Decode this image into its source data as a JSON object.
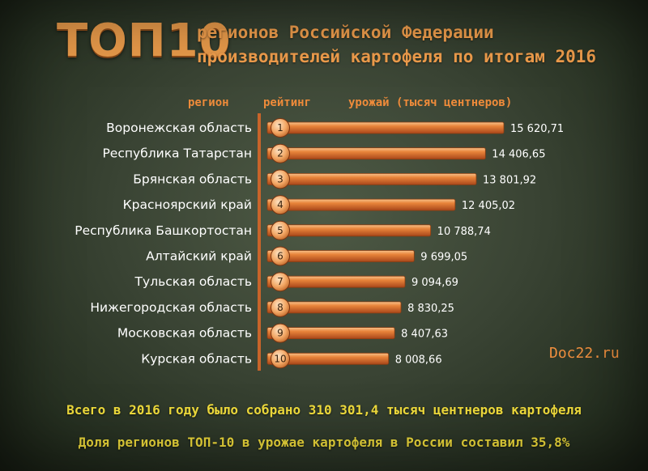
{
  "header": {
    "big_title": "ТОП10",
    "subtitle_line1": "регионов Российской Федерации",
    "subtitle_line2": "производителей картофеля по итогам 2016"
  },
  "columns": {
    "region": "регион",
    "rank": "рейтинг",
    "yield": "урожай (тысяч центнеров)"
  },
  "chart_data": {
    "type": "bar",
    "orientation": "horizontal",
    "categories": [
      "Воронежская область",
      "Республика Татарстан",
      "Брянская область",
      "Красноярский край",
      "Республика Башкортостан",
      "Алтайский край",
      "Тульская область",
      "Нижегородская область",
      "Московская область",
      "Курская область"
    ],
    "ranks": [
      "1",
      "2",
      "3",
      "4",
      "5",
      "6",
      "7",
      "8",
      "9",
      "10"
    ],
    "values": [
      15620.71,
      14406.65,
      13801.92,
      12405.02,
      10788.74,
      9699.05,
      9094.69,
      8830.25,
      8407.63,
      8008.66
    ],
    "value_labels": [
      "15 620,71",
      "14 406,65",
      "13 801,92",
      "12 405,02",
      "10 788,74",
      "9 699,05",
      "9 094,69",
      "8 830,25",
      "8 407,63",
      "8 008,66"
    ],
    "bar_color": "#e07a2e",
    "bar_highlight": "#f6b26b",
    "bar_shadow": "#8c3d10",
    "rank_badge_color": "#f2a663"
  },
  "watermark": "Doc22.ru",
  "footer": {
    "line1": "Всего в 2016 году было собрано 310 301,4 тысяч центнеров картофеля",
    "line2": "Доля регионов ТОП-10 в урожае картофеля в России составил 35,8%"
  },
  "colors": {
    "title_orange": "#e89a4a",
    "footer_yellow": "#f0dc3c",
    "background": "#3a4434"
  }
}
